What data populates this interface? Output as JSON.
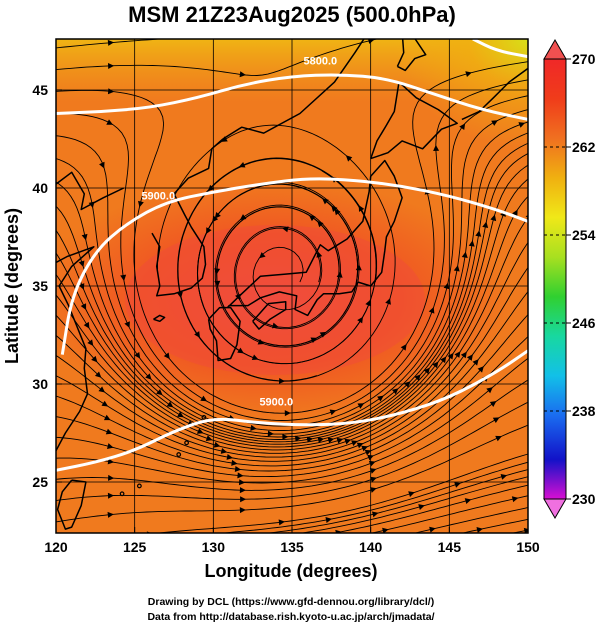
{
  "title": "MSM 21Z23Aug2025 (500.0hPa)",
  "xlabel": "Longitude (degrees)",
  "ylabel": "Latitude  (degrees)",
  "credits": [
    "Drawing by DCL (https://www.gfd-dennou.org/library/dcl/)",
    "Data from http://database.rish.kyoto-u.ac.jp/arch/jmadata/"
  ],
  "map_data": {
    "type": "map",
    "extent": {
      "lon": [
        120,
        150
      ],
      "lat": [
        22.4,
        47.6
      ]
    },
    "lon_ticks": [
      "120",
      "125",
      "130",
      "135",
      "140",
      "145",
      "150"
    ],
    "lat_ticks": [
      "25",
      "30",
      "35",
      "40",
      "45"
    ],
    "grid_lon": [
      125,
      130,
      135,
      140,
      145
    ],
    "grid_lat": [
      25,
      30,
      35,
      40,
      45
    ],
    "field": "temperature",
    "colorbar": {
      "min": 230,
      "max": 270,
      "tick_labels": [
        "270",
        "262",
        "254",
        "246",
        "238",
        "230"
      ],
      "colors": [
        "#d70fd2",
        "#1212c8",
        "#1a6cf0",
        "#12c0e8",
        "#18d8a0",
        "#30d030",
        "#a8e020",
        "#f0e818",
        "#f0b010",
        "#f07020",
        "#f03c1a",
        "#f02828"
      ]
    },
    "contours": [
      {
        "label": "5900.0",
        "lons": [
          120,
          122.5,
          125,
          127.5,
          130,
          133,
          136,
          139,
          142,
          145,
          148,
          150
        ],
        "lats": [
          25.6,
          26.0,
          26.6,
          27.6,
          28.3,
          28.0,
          27.9,
          28.0,
          28.5,
          29.3,
          30.6,
          31.7
        ]
      },
      {
        "label": "5900.0",
        "lons": [
          120.4,
          121.0,
          122.5,
          124.5,
          127,
          130,
          133,
          136,
          139,
          142,
          145,
          148,
          150
        ],
        "lats": [
          31.5,
          34.5,
          36.8,
          38.2,
          39.3,
          39.8,
          40.2,
          40.5,
          40.4,
          40.1,
          39.6,
          38.9,
          38.3
        ]
      },
      {
        "label": "5800.0",
        "lons": [
          120,
          123,
          126,
          129,
          132,
          135,
          138,
          141,
          144,
          147,
          150
        ],
        "lats": [
          43.8,
          43.9,
          44.1,
          44.6,
          45.3,
          45.7,
          45.8,
          45.6,
          44.8,
          44.0,
          43.5
        ]
      },
      {
        "label": "",
        "lons": [
          146.5,
          148,
          150
        ],
        "lats": [
          47.6,
          47.0,
          46.7
        ]
      }
    ],
    "cyclone_center": {
      "lon": 134.5,
      "lat": 35.2
    },
    "colors": {
      "coast": "#000000",
      "streamline": "#000000",
      "contour": "#ffffff",
      "grid": "#000000"
    }
  }
}
